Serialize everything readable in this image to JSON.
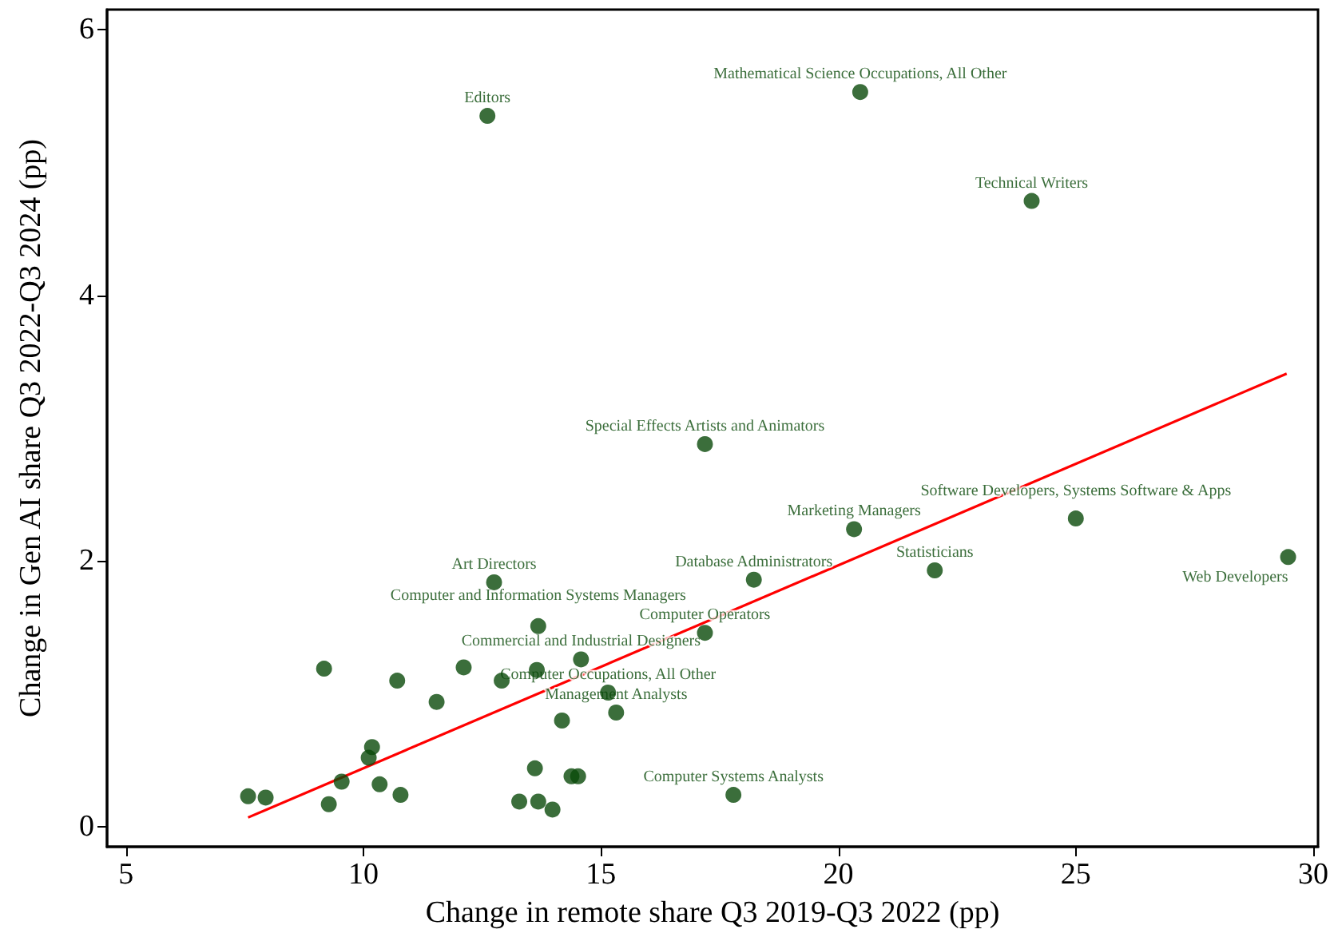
{
  "chart_data": {
    "type": "scatter",
    "xlabel": "Change in remote share Q3 2019-Q3 2022 (pp)",
    "ylabel": "Change in Gen AI share Q3 2022-Q3 2024 (pp)",
    "xlim": [
      4.6,
      30.1
    ],
    "ylim": [
      -0.15,
      6.15
    ],
    "xticks": [
      5,
      10,
      15,
      20,
      25,
      30
    ],
    "yticks": [
      0,
      2,
      4,
      6
    ],
    "grid": false,
    "marker": "circle",
    "series": [
      {
        "color": "#0a4a0a",
        "x": [
          12.61,
          20.46,
          24.07,
          17.19,
          20.33,
          25.0,
          22.03,
          29.47,
          18.22,
          12.75,
          17.19,
          13.68,
          14.58,
          15.15,
          15.32,
          17.79,
          9.17,
          10.71,
          12.11,
          11.54,
          12.91,
          13.65,
          14.18,
          10.18,
          10.11,
          9.54,
          10.34,
          10.78,
          9.27,
          7.57,
          7.94,
          13.61,
          14.38,
          14.52,
          13.28,
          13.68,
          13.98
        ],
        "values": [
          5.35,
          5.53,
          4.71,
          2.88,
          2.24,
          2.32,
          1.93,
          2.03,
          1.86,
          1.84,
          1.46,
          1.51,
          1.26,
          1.01,
          0.86,
          0.24,
          1.19,
          1.1,
          1.2,
          0.94,
          1.1,
          1.18,
          0.8,
          0.6,
          0.52,
          0.34,
          0.32,
          0.24,
          0.17,
          0.23,
          0.22,
          0.44,
          0.38,
          0.38,
          0.19,
          0.19,
          0.13
        ]
      },
      {
        "type": "line",
        "marker": "none",
        "color": "#ff0000",
        "x": [
          7.57,
          29.44
        ],
        "values": [
          0.07,
          3.41
        ]
      }
    ],
    "annotations": [
      {
        "text": "Editors",
        "x": 12.61,
        "y": 5.35
      },
      {
        "text": "Mathematical Science Occupations, All Other",
        "x": 20.46,
        "y": 5.53
      },
      {
        "text": "Technical Writers",
        "x": 24.07,
        "y": 4.71
      },
      {
        "text": "Special Effects Artists and Animators",
        "x": 17.19,
        "y": 2.88
      },
      {
        "text": "Marketing Managers",
        "x": 20.33,
        "y": 2.24
      },
      {
        "text": "Software Developers, Systems Software & Apps",
        "x": 25.0,
        "y": 2.32
      },
      {
        "text": "Statisticians",
        "x": 22.03,
        "y": 1.93
      },
      {
        "text": "Web Developers",
        "x": 29.47,
        "y": 2.03
      },
      {
        "text": "Database Administrators",
        "x": 18.22,
        "y": 1.86
      },
      {
        "text": "Art Directors",
        "x": 12.75,
        "y": 1.84
      },
      {
        "text": "Computer Operators",
        "x": 17.19,
        "y": 1.46
      },
      {
        "text": "Computer and Information Systems Managers",
        "x": 13.68,
        "y": 1.51
      },
      {
        "text": "Commercial and Industrial Designers",
        "x": 14.58,
        "y": 1.26
      },
      {
        "text": "Computer Occupations, All Other",
        "x": 15.15,
        "y": 1.01
      },
      {
        "text": "Management Analysts",
        "x": 15.32,
        "y": 0.86
      },
      {
        "text": "Computer Systems Analysts",
        "x": 17.79,
        "y": 0.24
      }
    ]
  }
}
